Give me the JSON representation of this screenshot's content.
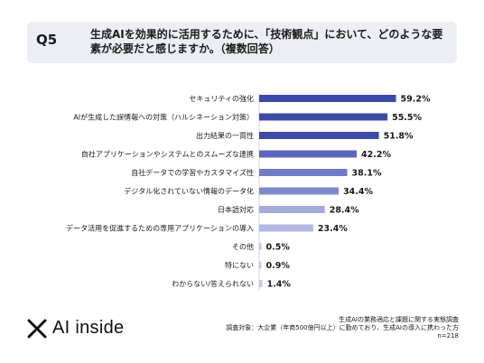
{
  "question": {
    "label": "Q5",
    "text": "生成AIを効果的に活用するために、「技術観点」において、どのような要素が必要だと感じますか。（複数回答）"
  },
  "chart_data": {
    "type": "bar",
    "orientation": "horizontal",
    "categories": [
      "セキュリティの強化",
      "AIが生成した誤情報への対策（ハルシネーション対策）",
      "出力結果の一貫性",
      "自社アプリケーションやシステムとのスムーズな連携",
      "自社データでの学習やカスタマイズ性",
      "デジタル化されていない情報のデータ化",
      "日本語対応",
      "データ活用を促進するための専用アプリケーションの導入",
      "その他",
      "特にない",
      "わからない/答えられない"
    ],
    "values": [
      59.2,
      55.5,
      51.8,
      42.2,
      38.1,
      34.4,
      28.4,
      23.4,
      0.5,
      0.9,
      1.4
    ],
    "value_labels": [
      "59.2%",
      "55.5%",
      "51.8%",
      "42.2%",
      "38.1%",
      "34.4%",
      "28.4%",
      "23.4%",
      "0.5%",
      "0.9%",
      "1.4%"
    ],
    "xlim": [
      0,
      100
    ],
    "colors": [
      "#3c4aa8",
      "#3c4aa8",
      "#3c4aa8",
      "#5a67bc",
      "#6f7bc6",
      "#7e89cd",
      "#a3abdc",
      "#b2b9e2",
      "#c5cae9",
      "#c5cae9",
      "#c5cae9"
    ],
    "grid": false,
    "legend": "none"
  },
  "brand": {
    "name": "AI inside",
    "logo_icon": "x-mark-icon"
  },
  "footer": {
    "line1": "生成AIの業務適応と課題に関する実態調査",
    "line2": "調査対象：大企業（年商500億円以上）に勤めており、生成AIの導入に携わった方",
    "line3": "n=218"
  }
}
